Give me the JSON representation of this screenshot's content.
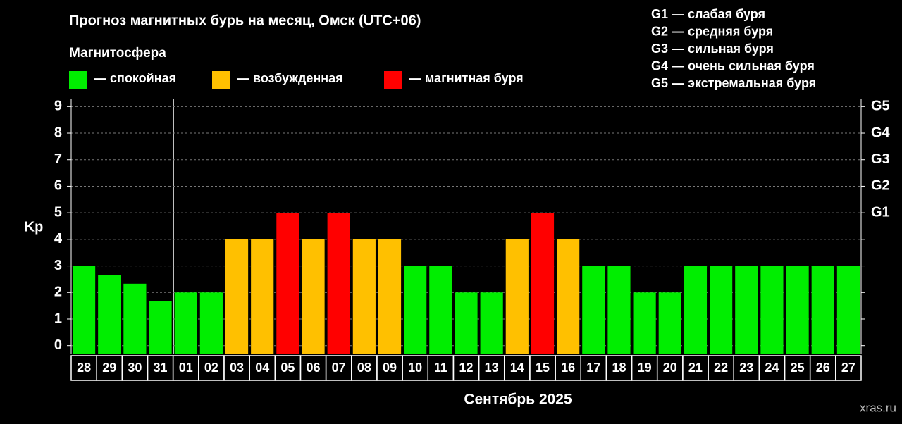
{
  "chart_data": {
    "type": "bar",
    "title": "Прогноз магнитных бурь на месяц, Омск (UTC+06)",
    "subtitle": "Магнитосфера",
    "y_label": "Kp",
    "x_label": "Сентябрь 2025",
    "watermark": "xras.ru",
    "storm_scale": [
      "G1 — слабая буря",
      "G2 — средняя буря",
      "G3 — сильная буря",
      "G4 — очень сильная буря",
      "G5 — экстремальная буря"
    ],
    "categories": [
      "28",
      "29",
      "30",
      "31",
      "01",
      "02",
      "03",
      "04",
      "05",
      "06",
      "07",
      "08",
      "09",
      "10",
      "11",
      "12",
      "13",
      "14",
      "15",
      "16",
      "17",
      "18",
      "19",
      "20",
      "21",
      "22",
      "23",
      "24",
      "25",
      "26",
      "27"
    ],
    "series": [
      {
        "name": "— спокойная",
        "color": "#00ee00",
        "values": [
          3,
          2.67,
          2.33,
          1.67,
          2,
          2,
          null,
          null,
          null,
          null,
          null,
          null,
          null,
          3,
          3,
          2,
          2,
          null,
          null,
          null,
          3,
          3,
          2,
          2,
          3,
          3,
          3,
          3,
          3,
          3,
          3
        ]
      },
      {
        "name": "— возбужденная",
        "color": "#ffc000",
        "values": [
          null,
          null,
          null,
          null,
          null,
          null,
          4,
          4,
          null,
          4,
          null,
          4,
          4,
          null,
          null,
          null,
          null,
          4,
          null,
          4,
          null,
          null,
          null,
          null,
          null,
          null,
          null,
          null,
          null,
          null,
          null
        ]
      },
      {
        "name": "— магнитная буря",
        "color": "#ff0000",
        "values": [
          null,
          null,
          null,
          null,
          null,
          null,
          null,
          null,
          5,
          null,
          5,
          null,
          null,
          null,
          null,
          null,
          null,
          null,
          5,
          null,
          null,
          null,
          null,
          null,
          null,
          null,
          null,
          null,
          null,
          null,
          null
        ]
      }
    ],
    "ylim": [
      -0.3,
      9.3
    ],
    "yticks": [
      0,
      1,
      2,
      3,
      4,
      5,
      6,
      7,
      8,
      9
    ],
    "y2lim": [
      -0.3,
      9.3
    ],
    "y2ticks": [
      {
        "value": 5,
        "label": "G1"
      },
      {
        "value": 6,
        "label": "G2"
      },
      {
        "value": 7,
        "label": "G3"
      },
      {
        "value": 8,
        "label": "G4"
      },
      {
        "value": 9,
        "label": "G5"
      }
    ],
    "grid": true
  }
}
